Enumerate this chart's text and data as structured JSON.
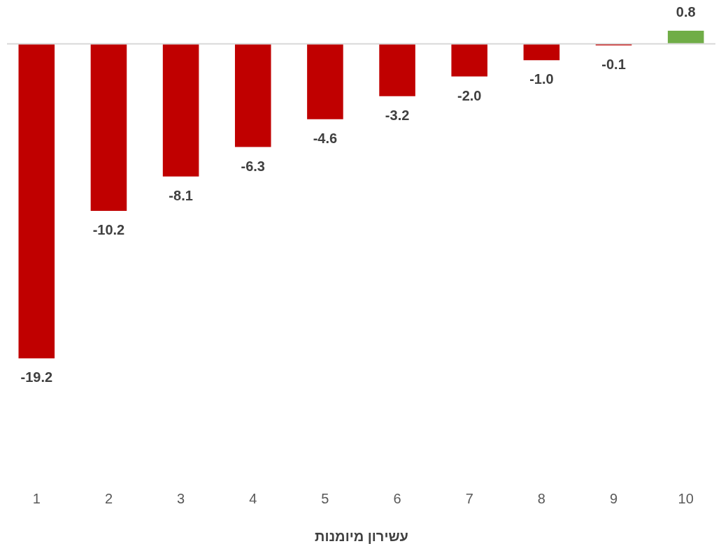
{
  "chart_data": {
    "type": "bar",
    "xlabel": "עשירון מיומנות",
    "categories": [
      "1",
      "2",
      "3",
      "4",
      "5",
      "6",
      "7",
      "8",
      "9",
      "10"
    ],
    "values": [
      -19.2,
      -10.2,
      -8.1,
      -6.3,
      -4.6,
      -3.2,
      -2.0,
      -1.0,
      -0.1,
      0.8
    ],
    "value_labels": [
      "-19.2",
      "-10.2",
      "-8.1",
      "-6.3",
      "-4.6",
      "-3.2",
      "-2.0",
      "-1.0",
      "-0.1",
      "0.8"
    ],
    "colors": [
      "#c00000",
      "#c00000",
      "#c00000",
      "#c00000",
      "#c00000",
      "#c00000",
      "#c00000",
      "#c00000",
      "#c00000",
      "#70ad47"
    ],
    "grid": false
  }
}
